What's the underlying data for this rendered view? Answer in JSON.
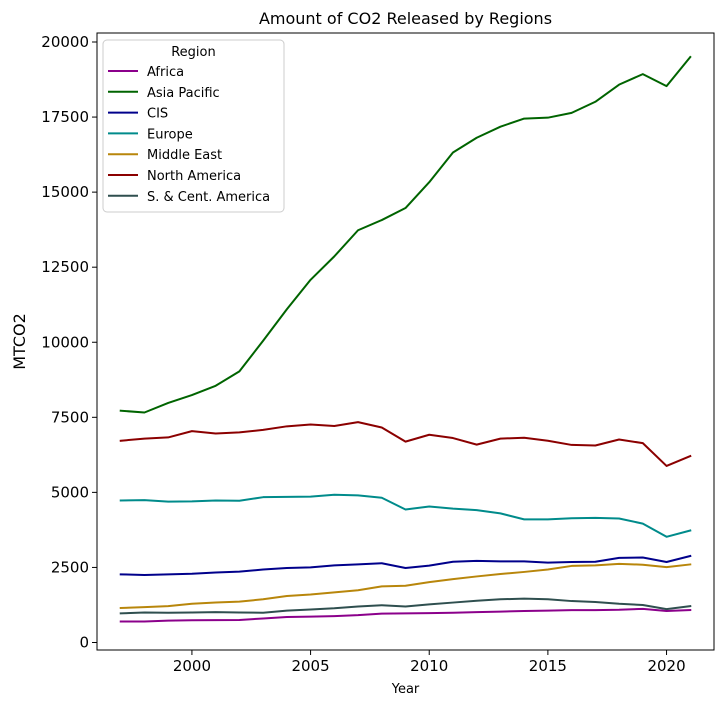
{
  "chart_data": {
    "type": "line",
    "title": "Amount of CO2 Released by Regions",
    "xlabel": "Year",
    "ylabel": "MTCO2",
    "xlim": [
      1996,
      2022
    ],
    "ylim": [
      -250,
      20300
    ],
    "xticks": [
      2000,
      2005,
      2010,
      2015,
      2020
    ],
    "yticks": [
      0,
      2500,
      5000,
      7500,
      10000,
      12500,
      15000,
      17500,
      20000
    ],
    "grid": false,
    "legend": {
      "title": "Region",
      "placement": "top-left"
    },
    "x": [
      1997,
      1998,
      1999,
      2000,
      2001,
      2002,
      2003,
      2004,
      2005,
      2006,
      2007,
      2008,
      2009,
      2010,
      2011,
      2012,
      2013,
      2014,
      2015,
      2016,
      2017,
      2018,
      2019,
      2020,
      2021
    ],
    "series": [
      {
        "name": "Africa",
        "color": "#8b008b",
        "values": [
          700,
          700,
          730,
          740,
          745,
          750,
          800,
          850,
          860,
          880,
          910,
          960,
          970,
          980,
          990,
          1010,
          1030,
          1050,
          1060,
          1080,
          1080,
          1090,
          1120,
          1050,
          1080
        ]
      },
      {
        "name": "Asia Pacific",
        "color": "#006400",
        "values": [
          7720,
          7660,
          7980,
          8240,
          8550,
          9030,
          10050,
          11100,
          12080,
          12860,
          13730,
          14070,
          14470,
          15330,
          16320,
          16810,
          17180,
          17450,
          17480,
          17640,
          18010,
          18580,
          18930,
          18530,
          19500
        ]
      },
      {
        "name": "CIS",
        "color": "#00008b",
        "values": [
          2270,
          2250,
          2270,
          2290,
          2330,
          2360,
          2430,
          2480,
          2500,
          2570,
          2600,
          2640,
          2480,
          2560,
          2690,
          2720,
          2700,
          2700,
          2660,
          2680,
          2690,
          2820,
          2830,
          2680,
          2880
        ]
      },
      {
        "name": "Europe",
        "color": "#008b8b",
        "values": [
          4730,
          4740,
          4690,
          4700,
          4730,
          4720,
          4840,
          4850,
          4860,
          4920,
          4900,
          4820,
          4430,
          4530,
          4460,
          4410,
          4300,
          4100,
          4100,
          4140,
          4150,
          4130,
          3960,
          3520,
          3730
        ]
      },
      {
        "name": "Middle East",
        "color": "#b8860b",
        "values": [
          1150,
          1180,
          1210,
          1290,
          1330,
          1360,
          1440,
          1550,
          1600,
          1670,
          1740,
          1870,
          1890,
          2010,
          2110,
          2200,
          2280,
          2350,
          2430,
          2550,
          2570,
          2620,
          2590,
          2510,
          2600
        ]
      },
      {
        "name": "North America",
        "color": "#8b0000",
        "values": [
          6720,
          6790,
          6830,
          7040,
          6960,
          7000,
          7080,
          7200,
          7260,
          7210,
          7340,
          7160,
          6690,
          6920,
          6810,
          6590,
          6790,
          6820,
          6720,
          6580,
          6560,
          6760,
          6640,
          5880,
          6210
        ]
      },
      {
        "name": "S. & Cent. America",
        "color": "#2f4f4f",
        "values": [
          970,
          1000,
          990,
          1000,
          1010,
          1000,
          990,
          1060,
          1100,
          1140,
          1200,
          1240,
          1200,
          1270,
          1330,
          1390,
          1440,
          1460,
          1440,
          1380,
          1350,
          1290,
          1250,
          1110,
          1210
        ]
      }
    ]
  }
}
